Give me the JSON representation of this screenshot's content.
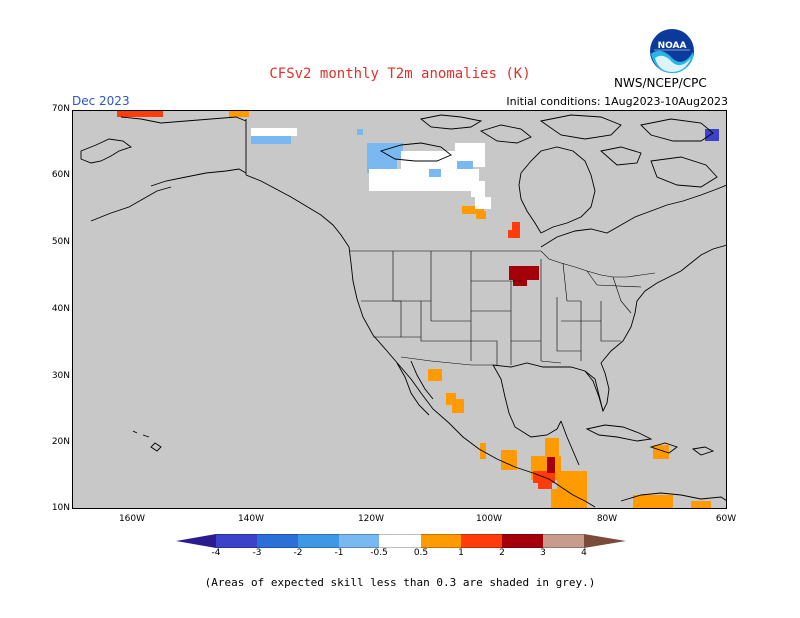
{
  "title": "CFSv2 monthly T2m anomalies (K)",
  "month_label": "Dec 2023",
  "initial_conditions": "Initial conditions: 1Aug2023-10Aug2023",
  "agency": "NWS/NCEP/CPC",
  "logo_text": "NOAA",
  "note": "(Areas of expected skill less than 0.3 are shaded in grey.)",
  "lat_labels": [
    "70N",
    "60N",
    "50N",
    "40N",
    "30N",
    "20N",
    "10N"
  ],
  "lon_labels": [
    "160W",
    "140W",
    "120W",
    "100W",
    "80W",
    "60W"
  ],
  "colorbar": {
    "ticks": [
      "-4",
      "-3",
      "-2",
      "-1",
      "-0.5",
      "0.5",
      "1",
      "2",
      "3",
      "4"
    ],
    "colors": [
      "#2b1b8f",
      "#3c43c8",
      "#2b70d6",
      "#3d98e6",
      "#79b8f0",
      "#ffffff",
      "#ff9b00",
      "#ff3c0a",
      "#a3000a",
      "#c89c8c",
      "#7a4a3a"
    ]
  },
  "colors": {
    "grey": "#c8c8c8",
    "coast": "#000000",
    "title_red": "#e0312b",
    "month_blue": "#2b55c8"
  }
}
